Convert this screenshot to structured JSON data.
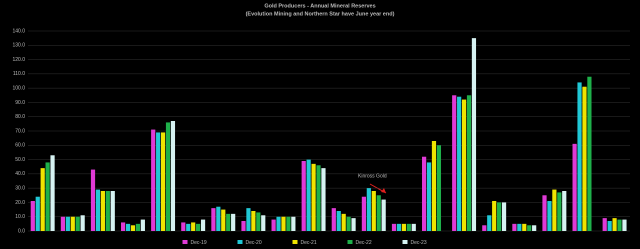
{
  "chart_data": {
    "type": "bar",
    "title": "Gold Producers - Annual Mineral Reserves",
    "subtitle": "(Evolution Mining and Northern Star have June year end)",
    "annotation": "Kinross Gold",
    "categories": [
      null,
      null,
      null,
      null,
      null,
      null,
      null,
      null,
      null,
      null,
      null,
      null,
      null,
      null,
      null,
      null,
      null,
      null,
      null,
      null
    ],
    "series": [
      {
        "name": "Dec-19",
        "color": "#e03ad6",
        "values": [
          21,
          10,
          43,
          6,
          71,
          6,
          16,
          7,
          8,
          49,
          16,
          24,
          5,
          52,
          95,
          4,
          5,
          25,
          61,
          9
        ]
      },
      {
        "name": "Dec-20",
        "color": "#20c8d6",
        "values": [
          24,
          10,
          29,
          5,
          69,
          5,
          17,
          16,
          10,
          50,
          14,
          30,
          5,
          48,
          94,
          11,
          5,
          21,
          104,
          7
        ]
      },
      {
        "name": "Dec-21",
        "color": "#f0e400",
        "values": [
          44,
          10,
          28,
          4,
          69,
          6,
          15,
          14,
          10,
          47,
          12,
          28,
          5,
          63,
          92,
          21,
          5,
          29,
          101,
          9
        ]
      },
      {
        "name": "Dec-22",
        "color": "#1eb04a",
        "values": [
          48,
          10,
          28,
          5,
          76,
          5,
          12,
          13,
          10,
          46,
          10,
          25,
          5,
          60,
          95,
          20,
          4,
          27,
          108,
          8
        ]
      },
      {
        "name": "Dec-23",
        "color": "#d6f2f2",
        "values": [
          53,
          11,
          28,
          8,
          77,
          8,
          12,
          11,
          10,
          44,
          9,
          22,
          5,
          null,
          135,
          20,
          4,
          28,
          null,
          8
        ]
      }
    ],
    "ylim": [
      0,
      140
    ],
    "yticks": [
      {
        "value": 0,
        "label": "0.0"
      },
      {
        "value": 10,
        "label": "10.0"
      },
      {
        "value": 20,
        "label": "20.0"
      },
      {
        "value": 30,
        "label": "30.0"
      },
      {
        "value": 40,
        "label": "40.0"
      },
      {
        "value": 50,
        "label": "50.0"
      },
      {
        "value": 60,
        "label": "60.0"
      },
      {
        "value": 70,
        "label": "70.0"
      },
      {
        "value": 80,
        "label": "80.0"
      },
      {
        "value": 90,
        "label": "90.0"
      },
      {
        "value": 100,
        "label": "100.0"
      },
      {
        "value": 110,
        "label": "110.0"
      },
      {
        "value": 120,
        "label": "120.0"
      },
      {
        "value": 130,
        "label": "130.0"
      },
      {
        "value": 140,
        "label": "140.0"
      }
    ],
    "grid": true
  }
}
